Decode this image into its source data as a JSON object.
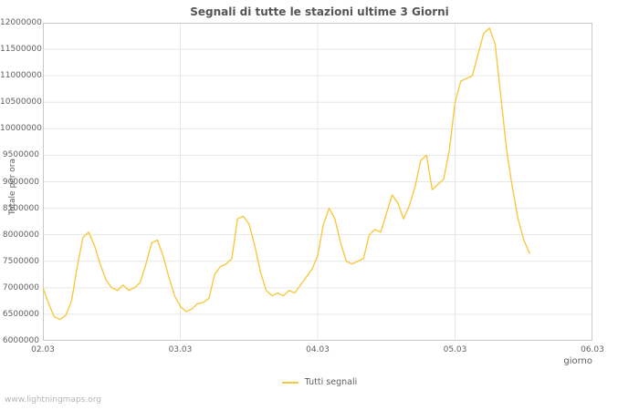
{
  "page": {
    "watermark": "www.lightningmaps.org"
  },
  "chart_data": {
    "type": "line",
    "title": "Segnali di tutte le stazioni ultime 3 Giorni",
    "xlabel": "giorno",
    "ylabel": "Totale per ora",
    "grid": true,
    "legend_position": "bottom-center",
    "xlim": [
      0,
      4
    ],
    "ylim": [
      6000000,
      12000000
    ],
    "x_ticks": [
      "02.03",
      "03.03",
      "04.03",
      "05.03",
      "06.03"
    ],
    "x_tick_positions": [
      0,
      1,
      2,
      3,
      4
    ],
    "y_ticks": [
      6000000,
      6500000,
      7000000,
      7500000,
      8000000,
      8500000,
      9000000,
      9500000,
      10000000,
      10500000,
      11000000,
      11500000,
      12000000
    ],
    "colors": {
      "grid": "#e7e7e7",
      "frame": "#c9c9c9",
      "accent": "#f8c842"
    },
    "series": [
      {
        "name": "Tutti segnali",
        "color": "#f8c842",
        "x_start": 0,
        "x_step": 0.04167,
        "values": [
          7000000,
          6700000,
          6450000,
          6400000,
          6480000,
          6750000,
          7400000,
          7950000,
          8050000,
          7800000,
          7450000,
          7150000,
          7000000,
          6950000,
          7050000,
          6950000,
          7000000,
          7100000,
          7450000,
          7850000,
          7900000,
          7600000,
          7200000,
          6850000,
          6650000,
          6550000,
          6600000,
          6700000,
          6720000,
          6800000,
          7250000,
          7400000,
          7450000,
          7550000,
          8300000,
          8350000,
          8200000,
          7800000,
          7300000,
          6950000,
          6850000,
          6900000,
          6850000,
          6950000,
          6900000,
          7050000,
          7200000,
          7350000,
          7600000,
          8200000,
          8500000,
          8300000,
          7850000,
          7500000,
          7450000,
          7500000,
          7550000,
          8000000,
          8100000,
          8050000,
          8400000,
          8750000,
          8600000,
          8300000,
          8550000,
          8900000,
          9400000,
          9500000,
          8850000,
          8950000,
          9050000,
          9600000,
          10500000,
          10900000,
          10950000,
          11000000,
          11400000,
          11800000,
          11900000,
          11600000,
          10600000,
          9600000,
          8900000,
          8300000,
          7900000,
          7650000
        ]
      }
    ]
  }
}
